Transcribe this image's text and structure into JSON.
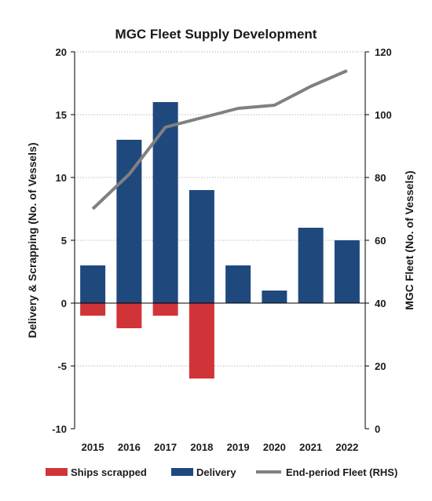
{
  "chart_data": {
    "type": "bar",
    "title": "MGC Fleet Supply Development",
    "categories": [
      "2015",
      "2016",
      "2017",
      "2018",
      "2019",
      "2020",
      "2021",
      "2022"
    ],
    "series": [
      {
        "name": "Ships scrapped",
        "type": "bar",
        "axis": "left",
        "color": "#d13438",
        "values": [
          -1,
          -2,
          -1,
          -6,
          0,
          0,
          0,
          0
        ]
      },
      {
        "name": "Delivery",
        "type": "bar",
        "axis": "left",
        "color": "#1f497d",
        "values": [
          3,
          13,
          16,
          9,
          3,
          1,
          6,
          5
        ]
      },
      {
        "name": "End-period Fleet (RHS)",
        "type": "line",
        "axis": "right",
        "color": "#808080",
        "values": [
          70,
          81,
          96,
          99,
          102,
          103,
          109,
          114
        ]
      }
    ],
    "ylabel": "Delivery & Scrapping (No. of Vessels)",
    "y2label": "MGC Fleet (No. of Vessels)",
    "ylim": [
      -10,
      20
    ],
    "y2lim": [
      0,
      120
    ],
    "yticks": [
      "20",
      "15",
      "10",
      "5",
      "0",
      "-5",
      "-10"
    ],
    "y2ticks": [
      "120",
      "100",
      "80",
      "60",
      "40",
      "20",
      "0"
    ],
    "grid": true,
    "legend_position": "bottom"
  }
}
